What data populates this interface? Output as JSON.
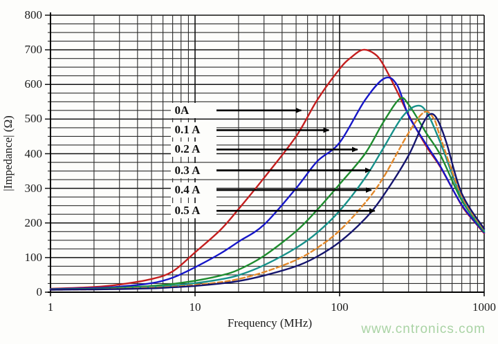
{
  "watermark": {
    "text": "www.cntronics.com",
    "color": "#a9d3a4"
  },
  "chart_data": {
    "type": "line",
    "title": "",
    "xlabel": "Frequency (MHz)",
    "ylabel": "|Impedance| (Ω)",
    "x_scale": "log",
    "xlim": [
      1,
      1000
    ],
    "ylim": [
      0,
      800
    ],
    "x_ticks": [
      1,
      10,
      100,
      1000
    ],
    "y_ticks": [
      0,
      100,
      200,
      300,
      400,
      500,
      600,
      700,
      800
    ],
    "y_minor_step": 25,
    "grid": true,
    "legend_position": "none",
    "colors": {
      "grid_minor": "#2b2b2b",
      "grid_major": "#111111",
      "axis": "#000000",
      "arrow": "#000000"
    },
    "series": [
      {
        "name": "0A",
        "color": "#c41e1e",
        "dash": false,
        "points": [
          [
            1,
            10
          ],
          [
            2,
            15
          ],
          [
            3,
            22
          ],
          [
            5,
            38
          ],
          [
            7,
            60
          ],
          [
            10,
            115
          ],
          [
            15,
            180
          ],
          [
            20,
            240
          ],
          [
            30,
            330
          ],
          [
            50,
            450
          ],
          [
            70,
            555
          ],
          [
            100,
            645
          ],
          [
            120,
            678
          ],
          [
            145,
            700
          ],
          [
            175,
            688
          ],
          [
            200,
            658
          ],
          [
            250,
            580
          ],
          [
            300,
            512
          ],
          [
            400,
            420
          ],
          [
            500,
            360
          ],
          [
            700,
            250
          ],
          [
            850,
            205
          ],
          [
            1000,
            170
          ]
        ]
      },
      {
        "name": "0.1 A",
        "color": "#1616c8",
        "dash": false,
        "points": [
          [
            1,
            9
          ],
          [
            2,
            12
          ],
          [
            3,
            16
          ],
          [
            5,
            26
          ],
          [
            7,
            42
          ],
          [
            10,
            72
          ],
          [
            15,
            112
          ],
          [
            20,
            146
          ],
          [
            30,
            195
          ],
          [
            50,
            300
          ],
          [
            70,
            378
          ],
          [
            100,
            432
          ],
          [
            150,
            555
          ],
          [
            205,
            618
          ],
          [
            250,
            598
          ],
          [
            300,
            510
          ],
          [
            400,
            425
          ],
          [
            500,
            362
          ],
          [
            700,
            252
          ],
          [
            1000,
            172
          ]
        ]
      },
      {
        "name": "0.2 A",
        "color": "#1e8c2e",
        "dash": false,
        "points": [
          [
            1,
            8
          ],
          [
            2,
            10
          ],
          [
            3,
            13
          ],
          [
            5,
            18
          ],
          [
            7,
            24
          ],
          [
            10,
            33
          ],
          [
            15,
            48
          ],
          [
            20,
            65
          ],
          [
            30,
            105
          ],
          [
            50,
            176
          ],
          [
            70,
            238
          ],
          [
            100,
            312
          ],
          [
            150,
            400
          ],
          [
            200,
            490
          ],
          [
            260,
            558
          ],
          [
            300,
            542
          ],
          [
            400,
            458
          ],
          [
            500,
            395
          ],
          [
            700,
            265
          ],
          [
            1000,
            175
          ]
        ]
      },
      {
        "name": "0.3 A",
        "color": "#17918a",
        "dash": false,
        "points": [
          [
            1,
            8
          ],
          [
            2,
            9
          ],
          [
            3,
            11
          ],
          [
            5,
            15
          ],
          [
            7,
            19
          ],
          [
            10,
            26
          ],
          [
            15,
            37
          ],
          [
            20,
            49
          ],
          [
            30,
            78
          ],
          [
            50,
            128
          ],
          [
            70,
            172
          ],
          [
            100,
            235
          ],
          [
            150,
            330
          ],
          [
            200,
            415
          ],
          [
            270,
            505
          ],
          [
            340,
            538
          ],
          [
            400,
            520
          ],
          [
            500,
            430
          ],
          [
            700,
            272
          ],
          [
            1000,
            178
          ]
        ]
      },
      {
        "name": "0.4 A",
        "color": "#e2882a",
        "dash": true,
        "points": [
          [
            1,
            7
          ],
          [
            2,
            8
          ],
          [
            3,
            10
          ],
          [
            5,
            13
          ],
          [
            7,
            16
          ],
          [
            10,
            21
          ],
          [
            15,
            29
          ],
          [
            20,
            38
          ],
          [
            30,
            58
          ],
          [
            50,
            93
          ],
          [
            70,
            128
          ],
          [
            100,
            178
          ],
          [
            150,
            258
          ],
          [
            200,
            330
          ],
          [
            300,
            460
          ],
          [
            385,
            520
          ],
          [
            450,
            500
          ],
          [
            500,
            445
          ],
          [
            700,
            278
          ],
          [
            1000,
            180
          ]
        ]
      },
      {
        "name": "0.5 A",
        "color": "#15156e",
        "dash": false,
        "points": [
          [
            1,
            7
          ],
          [
            2,
            8
          ],
          [
            3,
            9
          ],
          [
            5,
            11
          ],
          [
            7,
            14
          ],
          [
            10,
            18
          ],
          [
            15,
            25
          ],
          [
            20,
            32
          ],
          [
            30,
            48
          ],
          [
            50,
            75
          ],
          [
            70,
            103
          ],
          [
            100,
            145
          ],
          [
            150,
            212
          ],
          [
            200,
            278
          ],
          [
            300,
            395
          ],
          [
            380,
            490
          ],
          [
            430,
            515
          ],
          [
            480,
            495
          ],
          [
            550,
            430
          ],
          [
            700,
            285
          ],
          [
            1000,
            183
          ]
        ]
      }
    ],
    "annotations": [
      {
        "label": "0A",
        "y_ohm": 525,
        "arrow_start_mhz": 14,
        "arrow_end_mhz": 58
      },
      {
        "label": "0.1 A",
        "y_ohm": 468,
        "arrow_start_mhz": 14,
        "arrow_end_mhz": 90
      },
      {
        "label": "0.2 A",
        "y_ohm": 412,
        "arrow_start_mhz": 14,
        "arrow_end_mhz": 142
      },
      {
        "label": "0.3 A",
        "y_ohm": 352,
        "arrow_start_mhz": 14,
        "arrow_end_mhz": 175
      },
      {
        "label": "0.4 A",
        "y_ohm": 295,
        "arrow_start_mhz": 14,
        "arrow_end_mhz": 177
      },
      {
        "label": "0.5 A",
        "y_ohm": 235,
        "arrow_start_mhz": 14,
        "arrow_end_mhz": 187
      }
    ]
  }
}
